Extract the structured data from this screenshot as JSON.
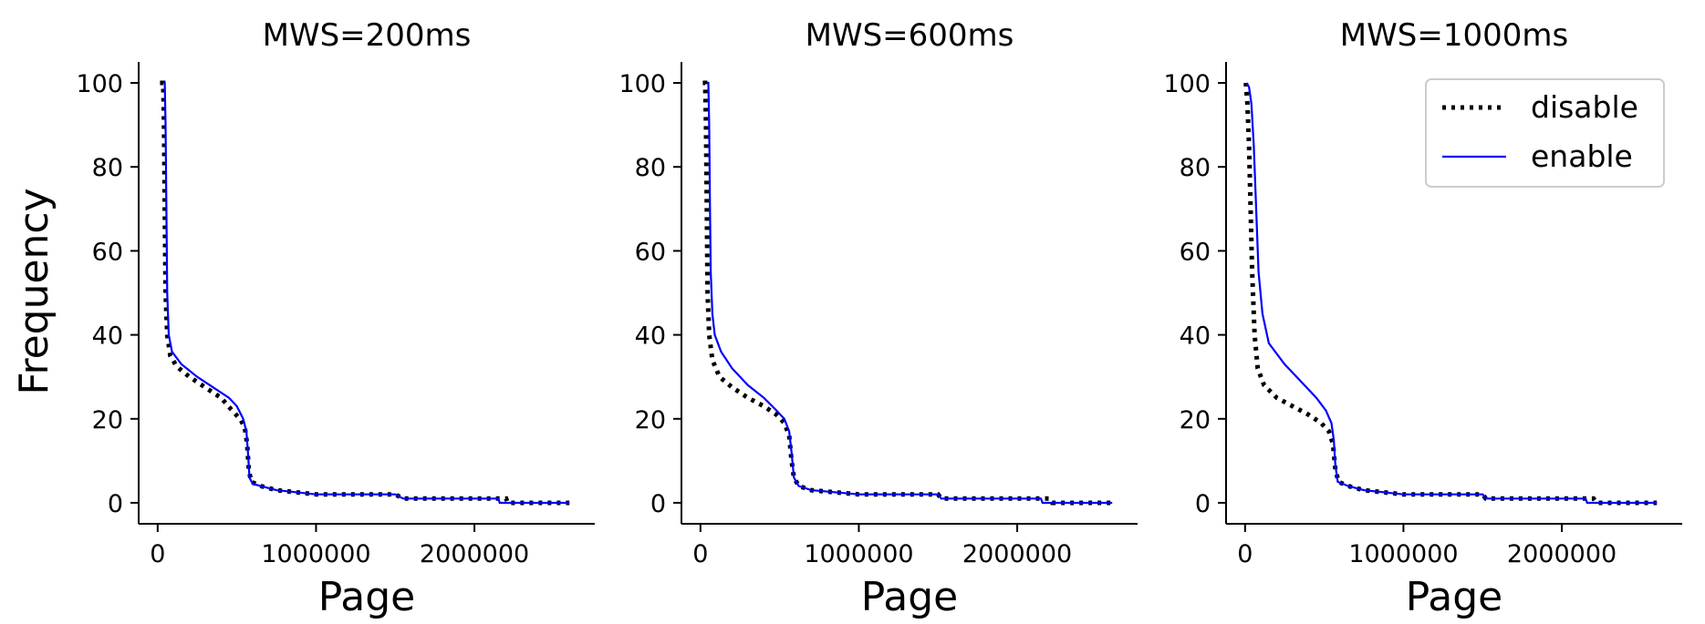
{
  "chart_data": [
    {
      "type": "line",
      "title": "MWS=200ms",
      "xlabel": "Page",
      "ylabel": "Frequency",
      "xlim": [
        -120000,
        2760000
      ],
      "ylim": [
        -5,
        105
      ],
      "xticks": [
        0,
        1000000,
        2000000
      ],
      "xtick_labels": [
        "0",
        "1000000",
        "2000000"
      ],
      "yticks": [
        0,
        20,
        40,
        60,
        80,
        100
      ],
      "ytick_labels": [
        "0",
        "20",
        "40",
        "60",
        "80",
        "100"
      ],
      "legend": null,
      "series": [
        {
          "name": "disable",
          "color": "#000000",
          "style": "dotted",
          "points": [
            [
              15000,
              100
            ],
            [
              35000,
              100
            ],
            [
              40000,
              90
            ],
            [
              45000,
              70
            ],
            [
              50000,
              50
            ],
            [
              60000,
              40
            ],
            [
              80000,
              35
            ],
            [
              120000,
              32.5
            ],
            [
              200000,
              30
            ],
            [
              300000,
              27.5
            ],
            [
              400000,
              25
            ],
            [
              470000,
              22
            ],
            [
              520000,
              20
            ],
            [
              550000,
              18
            ],
            [
              565000,
              14
            ],
            [
              575000,
              8
            ],
            [
              590000,
              5
            ],
            [
              650000,
              4
            ],
            [
              750000,
              3
            ],
            [
              1000000,
              2
            ],
            [
              1500000,
              2
            ],
            [
              1550000,
              1
            ],
            [
              2200000,
              1
            ],
            [
              2210000,
              0
            ],
            [
              2600000,
              0
            ]
          ]
        },
        {
          "name": "enable",
          "color": "#0000ff",
          "style": "solid",
          "points": [
            [
              35000,
              100
            ],
            [
              45000,
              100
            ],
            [
              50000,
              90
            ],
            [
              55000,
              70
            ],
            [
              60000,
              50
            ],
            [
              70000,
              40
            ],
            [
              90000,
              36
            ],
            [
              150000,
              33
            ],
            [
              250000,
              30
            ],
            [
              350000,
              27.5
            ],
            [
              450000,
              25
            ],
            [
              500000,
              23
            ],
            [
              540000,
              20
            ],
            [
              560000,
              17
            ],
            [
              570000,
              12
            ],
            [
              580000,
              6
            ],
            [
              600000,
              4.5
            ],
            [
              650000,
              4
            ],
            [
              750000,
              3
            ],
            [
              1000000,
              2
            ],
            [
              1500000,
              2
            ],
            [
              1550000,
              1
            ],
            [
              2150000,
              1
            ],
            [
              2160000,
              0
            ],
            [
              2600000,
              0
            ]
          ]
        }
      ]
    },
    {
      "type": "line",
      "title": "MWS=600ms",
      "xlabel": "Page",
      "ylabel": "",
      "xlim": [
        -120000,
        2760000
      ],
      "ylim": [
        -5,
        105
      ],
      "xticks": [
        0,
        1000000,
        2000000
      ],
      "xtick_labels": [
        "0",
        "1000000",
        "2000000"
      ],
      "yticks": [
        0,
        20,
        40,
        60,
        80,
        100
      ],
      "ytick_labels": [
        "0",
        "20",
        "40",
        "60",
        "80",
        "100"
      ],
      "legend": null,
      "series": [
        {
          "name": "disable",
          "color": "#000000",
          "style": "dotted",
          "points": [
            [
              15000,
              100
            ],
            [
              30000,
              100
            ],
            [
              35000,
              90
            ],
            [
              40000,
              70
            ],
            [
              45000,
              50
            ],
            [
              55000,
              40
            ],
            [
              75000,
              34
            ],
            [
              120000,
              30
            ],
            [
              200000,
              27.5
            ],
            [
              300000,
              25
            ],
            [
              400000,
              23
            ],
            [
              480000,
              21
            ],
            [
              530000,
              19
            ],
            [
              560000,
              16
            ],
            [
              575000,
              10
            ],
            [
              590000,
              6
            ],
            [
              620000,
              4
            ],
            [
              700000,
              3
            ],
            [
              1000000,
              2
            ],
            [
              1500000,
              2
            ],
            [
              1520000,
              1
            ],
            [
              2200000,
              1
            ],
            [
              2220000,
              0
            ],
            [
              2600000,
              0
            ]
          ]
        },
        {
          "name": "enable",
          "color": "#0000ff",
          "style": "solid",
          "points": [
            [
              40000,
              100
            ],
            [
              50000,
              100
            ],
            [
              55000,
              90
            ],
            [
              60000,
              70
            ],
            [
              65000,
              55
            ],
            [
              75000,
              45
            ],
            [
              90000,
              40
            ],
            [
              130000,
              36
            ],
            [
              200000,
              32
            ],
            [
              300000,
              28
            ],
            [
              400000,
              25
            ],
            [
              480000,
              22
            ],
            [
              530000,
              20
            ],
            [
              560000,
              17
            ],
            [
              575000,
              12
            ],
            [
              590000,
              6
            ],
            [
              620000,
              4
            ],
            [
              700000,
              3
            ],
            [
              1000000,
              2
            ],
            [
              1500000,
              2
            ],
            [
              1520000,
              1
            ],
            [
              2150000,
              1
            ],
            [
              2160000,
              0
            ],
            [
              2600000,
              0
            ]
          ]
        }
      ]
    },
    {
      "type": "line",
      "title": "MWS=1000ms",
      "xlabel": "Page",
      "ylabel": "",
      "xlim": [
        -120000,
        2760000
      ],
      "ylim": [
        -5,
        105
      ],
      "xticks": [
        0,
        1000000,
        2000000
      ],
      "xtick_labels": [
        "0",
        "1000000",
        "2000000"
      ],
      "yticks": [
        0,
        20,
        40,
        60,
        80,
        100
      ],
      "ytick_labels": [
        "0",
        "20",
        "40",
        "60",
        "80",
        "100"
      ],
      "legend": {
        "position": "top-right",
        "entries": [
          "disable",
          "enable"
        ]
      },
      "series": [
        {
          "name": "disable",
          "color": "#000000",
          "style": "dotted",
          "points": [
            [
              5000,
              100
            ],
            [
              15000,
              95
            ],
            [
              25000,
              85
            ],
            [
              35000,
              70
            ],
            [
              45000,
              55
            ],
            [
              60000,
              40
            ],
            [
              80000,
              32
            ],
            [
              120000,
              28
            ],
            [
              200000,
              25
            ],
            [
              300000,
              23
            ],
            [
              400000,
              21
            ],
            [
              480000,
              19
            ],
            [
              530000,
              17
            ],
            [
              555000,
              14
            ],
            [
              570000,
              8
            ],
            [
              590000,
              5
            ],
            [
              650000,
              4
            ],
            [
              750000,
              3
            ],
            [
              1000000,
              2
            ],
            [
              1500000,
              2
            ],
            [
              1520000,
              1
            ],
            [
              2200000,
              1
            ],
            [
              2220000,
              0
            ],
            [
              2600000,
              0
            ]
          ]
        },
        {
          "name": "enable",
          "color": "#0000ff",
          "style": "solid",
          "points": [
            [
              10000,
              100
            ],
            [
              25000,
              99
            ],
            [
              40000,
              95
            ],
            [
              55000,
              85
            ],
            [
              70000,
              70
            ],
            [
              85000,
              55
            ],
            [
              110000,
              45
            ],
            [
              150000,
              38
            ],
            [
              250000,
              33
            ],
            [
              350000,
              29
            ],
            [
              450000,
              25
            ],
            [
              510000,
              22
            ],
            [
              545000,
              19
            ],
            [
              560000,
              15
            ],
            [
              570000,
              9
            ],
            [
              585000,
              5
            ],
            [
              650000,
              4
            ],
            [
              750000,
              3
            ],
            [
              1000000,
              2
            ],
            [
              1500000,
              2
            ],
            [
              1520000,
              1
            ],
            [
              2150000,
              1
            ],
            [
              2160000,
              0
            ],
            [
              2600000,
              0
            ]
          ]
        }
      ]
    }
  ]
}
